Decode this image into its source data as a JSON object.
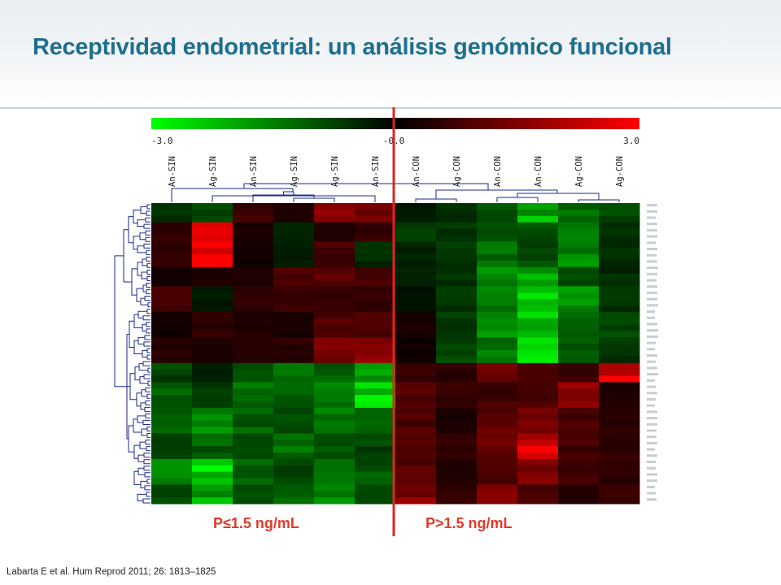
{
  "slide": {
    "title": "Receptividad endometrial: un análisis genómico funcional",
    "citation": "Labarta E et al. Hum Reprod 2011; 26: 1813–1825",
    "group_left_label": "P≤1.5 ng/mL",
    "group_right_label": "P>1.5 ng/mL",
    "colors": {
      "title": "#1f6e8e",
      "group_label": "#e23a2b",
      "divider": "#d8281f",
      "scale_low": "#00ff00",
      "scale_mid": "#000000",
      "scale_high": "#ff0000"
    }
  },
  "chart_data": {
    "type": "heatmap",
    "color_scale": {
      "min_label": "-3.0",
      "mid_label": "-0.0",
      "max_label": "3.0",
      "min": -3.0,
      "max": 3.0
    },
    "columns": [
      "An-SIN",
      "Ag-SIN",
      "An-SIN",
      "Ag-SIN",
      "Ag-SIN",
      "An-SIN",
      "An-CON",
      "Ag-CON",
      "An-CON",
      "An-CON",
      "Ag-CON",
      "Ag-CON"
    ],
    "row_blocks": [
      {
        "rows": 3,
        "values": [
          -0.6,
          -0.9,
          0.7,
          0.4,
          1.6,
          1.4,
          -0.3,
          -0.5,
          -1.0,
          -2.0,
          -1.2,
          -0.8
        ]
      },
      {
        "rows": 3,
        "values": [
          0.5,
          2.9,
          0.3,
          -0.4,
          0.4,
          0.6,
          -0.8,
          -0.6,
          -1.1,
          -0.9,
          -1.4,
          -0.6
        ]
      },
      {
        "rows": 4,
        "values": [
          0.6,
          2.6,
          0.2,
          -0.3,
          0.8,
          -0.5,
          -0.4,
          -0.7,
          -1.4,
          -0.9,
          -1.6,
          -0.5
        ]
      },
      {
        "rows": 3,
        "values": [
          0.2,
          0.4,
          0.4,
          1.0,
          1.2,
          0.8,
          -0.5,
          -0.6,
          -1.6,
          -2.0,
          -1.0,
          -0.5
        ]
      },
      {
        "rows": 4,
        "values": [
          0.9,
          -0.3,
          0.5,
          0.6,
          0.6,
          0.6,
          -0.2,
          -0.6,
          -1.5,
          -2.2,
          -1.6,
          -0.6
        ]
      },
      {
        "rows": 4,
        "values": [
          0.2,
          0.6,
          0.4,
          0.3,
          0.9,
          0.9,
          0.3,
          -0.7,
          -1.7,
          -2.2,
          -1.2,
          -0.9
        ]
      },
      {
        "rows": 4,
        "values": [
          0.4,
          0.3,
          0.5,
          0.5,
          1.3,
          1.5,
          0.2,
          -0.8,
          -1.4,
          -2.4,
          -1.1,
          -0.6
        ]
      },
      {
        "rows": 3,
        "values": [
          -0.8,
          -0.4,
          -1.0,
          -1.6,
          -1.2,
          -2.0,
          0.7,
          0.5,
          1.2,
          0.8,
          0.6,
          2.6
        ]
      },
      {
        "rows": 4,
        "values": [
          -1.2,
          -0.8,
          -1.3,
          -1.0,
          -1.4,
          -2.4,
          1.0,
          0.6,
          0.8,
          0.9,
          1.8,
          0.4
        ]
      },
      {
        "rows": 4,
        "values": [
          -1.0,
          -1.6,
          -1.1,
          -0.9,
          -1.5,
          -1.2,
          0.9,
          0.3,
          1.1,
          1.4,
          0.9,
          0.5
        ]
      },
      {
        "rows": 4,
        "values": [
          -0.9,
          -1.1,
          -0.8,
          -1.3,
          -1.0,
          -0.8,
          1.2,
          0.6,
          1.3,
          2.4,
          0.8,
          0.6
        ]
      },
      {
        "rows": 4,
        "values": [
          -1.4,
          -2.6,
          -1.1,
          -0.8,
          -1.2,
          -1.0,
          1.0,
          0.4,
          1.0,
          1.4,
          0.7,
          0.5
        ]
      },
      {
        "rows": 3,
        "values": [
          -0.8,
          -1.9,
          -0.9,
          -1.3,
          -1.7,
          -1.0,
          1.5,
          0.6,
          1.8,
          0.9,
          0.5,
          0.7
        ]
      }
    ]
  }
}
